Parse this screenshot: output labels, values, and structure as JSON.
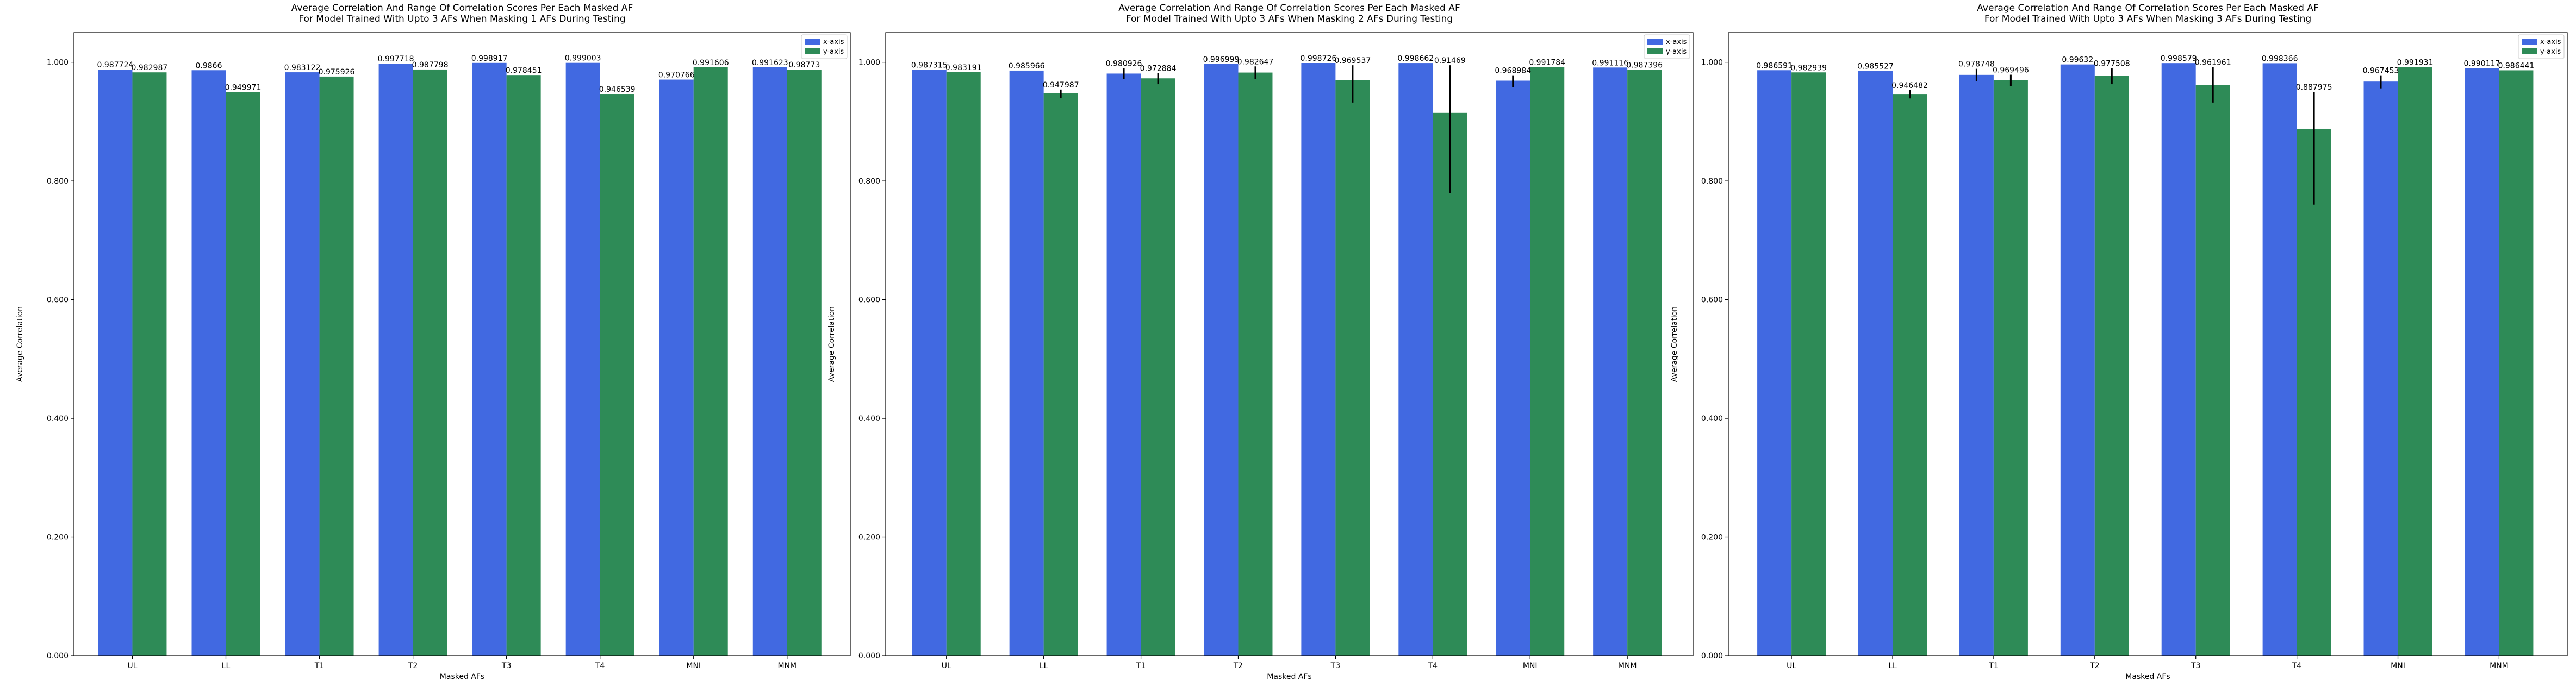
{
  "chart_data": [
    {
      "type": "bar",
      "title": "Average Correlation And Range Of Correlation Scores Per Each Masked AF\nFor Model Trained With Upto 3 AFs When Masking 1 AFs During Testing",
      "xlabel": "Masked AFs",
      "ylabel": "Average Correlation",
      "categories": [
        "UL",
        "LL",
        "T1",
        "T2",
        "T3",
        "T4",
        "MNI",
        "MNM"
      ],
      "ylim": [
        0,
        1.05
      ],
      "yticks": [
        "0.000",
        "0.200",
        "0.400",
        "0.600",
        "0.800",
        "1.000"
      ],
      "legend": "top-right",
      "series": [
        {
          "name": "x-axis",
          "values": [
            0.987724,
            0.9866,
            0.983122,
            0.997718,
            0.998917,
            0.999003,
            0.970766,
            0.991623
          ],
          "labels": [
            "0.987724",
            "0.9866",
            "0.983122",
            "0.997718",
            "0.998917",
            "0.999003",
            "0.970766",
            "0.991623"
          ],
          "err_low": [
            0.987724,
            0.9866,
            0.983122,
            0.997718,
            0.998917,
            0.999003,
            0.970766,
            0.991623
          ],
          "err_high": [
            0.987724,
            0.9866,
            0.983122,
            0.997718,
            0.998917,
            0.999003,
            0.970766,
            0.991623
          ]
        },
        {
          "name": "y-axis",
          "values": [
            0.982987,
            0.949971,
            0.975926,
            0.987798,
            0.978451,
            0.946539,
            0.991606,
            0.98773
          ],
          "labels": [
            "0.982987",
            "0.949971",
            "0.975926",
            "0.987798",
            "0.978451",
            "0.946539",
            "0.991606",
            "0.98773"
          ],
          "err_low": [
            0.982987,
            0.949971,
            0.975926,
            0.987798,
            0.978451,
            0.946539,
            0.991606,
            0.98773
          ],
          "err_high": [
            0.982987,
            0.949971,
            0.975926,
            0.987798,
            0.978451,
            0.946539,
            0.991606,
            0.98773
          ]
        }
      ]
    },
    {
      "type": "bar",
      "title": "Average Correlation And Range Of Correlation Scores Per Each Masked AF\nFor Model Trained With Upto 3 AFs When Masking 2 AFs During Testing",
      "xlabel": "Masked AFs",
      "ylabel": "Average Correlation",
      "categories": [
        "UL",
        "LL",
        "T1",
        "T2",
        "T3",
        "T4",
        "MNI",
        "MNM"
      ],
      "ylim": [
        0,
        1.05
      ],
      "yticks": [
        "0.000",
        "0.200",
        "0.400",
        "0.600",
        "0.800",
        "1.000"
      ],
      "legend": "top-right",
      "series": [
        {
          "name": "x-axis",
          "values": [
            0.987315,
            0.985966,
            0.980926,
            0.996999,
            0.998726,
            0.998662,
            0.968984,
            0.991116
          ],
          "labels": [
            "0.987315",
            "0.985966",
            "0.980926",
            "0.996999",
            "0.998726",
            "0.998662",
            "0.968984",
            "0.991116"
          ],
          "err_low": [
            0.987315,
            0.985966,
            0.972,
            0.996999,
            0.998726,
            0.998662,
            0.958,
            0.991116
          ],
          "err_high": [
            0.987315,
            0.985966,
            0.99,
            0.996999,
            0.998726,
            0.998662,
            0.978,
            0.991116
          ]
        },
        {
          "name": "y-axis",
          "values": [
            0.983191,
            0.947987,
            0.972884,
            0.982647,
            0.969537,
            0.91469,
            0.991784,
            0.987396
          ],
          "labels": [
            "0.983191",
            "0.947987",
            "0.972884",
            "0.982647",
            "0.969537",
            "0.91469",
            "0.991784",
            "0.987396"
          ],
          "err_low": [
            0.983191,
            0.94,
            0.963,
            0.972,
            0.932,
            0.78,
            0.991784,
            0.987396
          ],
          "err_high": [
            0.983191,
            0.954,
            0.982,
            0.993,
            0.995,
            0.995,
            0.991784,
            0.987396
          ]
        }
      ]
    },
    {
      "type": "bar",
      "title": "Average Correlation And Range Of Correlation Scores Per Each Masked AF\nFor Model Trained With Upto 3 AFs When Masking 3 AFs During Testing",
      "xlabel": "Masked AFs",
      "ylabel": "Average Correlation",
      "categories": [
        "UL",
        "LL",
        "T1",
        "T2",
        "T3",
        "T4",
        "MNI",
        "MNM"
      ],
      "ylim": [
        0,
        1.05
      ],
      "yticks": [
        "0.000",
        "0.200",
        "0.400",
        "0.600",
        "0.800",
        "1.000"
      ],
      "legend": "top-right",
      "series": [
        {
          "name": "x-axis",
          "values": [
            0.986591,
            0.985527,
            0.978748,
            0.99632,
            0.998579,
            0.998366,
            0.967453,
            0.990117
          ],
          "labels": [
            "0.986591",
            "0.985527",
            "0.978748",
            "0.99632",
            "0.998579",
            "0.998366",
            "0.967453",
            "0.990117"
          ],
          "err_low": [
            0.986591,
            0.985527,
            0.968,
            0.99632,
            0.998579,
            0.998366,
            0.956,
            0.990117
          ],
          "err_high": [
            0.986591,
            0.985527,
            0.989,
            0.99632,
            0.998579,
            0.998366,
            0.978,
            0.990117
          ]
        },
        {
          "name": "y-axis",
          "values": [
            0.982939,
            0.946482,
            0.969496,
            0.977508,
            0.961961,
            0.887975,
            0.991931,
            0.986441
          ],
          "labels": [
            "0.982939",
            "0.946482",
            "0.969496",
            "0.977508",
            "0.961961",
            "0.887975",
            "0.991931",
            "0.986441"
          ],
          "err_low": [
            0.982939,
            0.939,
            0.96,
            0.963,
            0.932,
            0.76,
            0.991931,
            0.986441
          ],
          "err_high": [
            0.982939,
            0.953,
            0.979,
            0.99,
            0.992,
            0.95,
            0.991931,
            0.986441
          ]
        }
      ]
    }
  ],
  "colors": {
    "x-axis": "#4169e1",
    "y-axis": "#2e8b57"
  }
}
